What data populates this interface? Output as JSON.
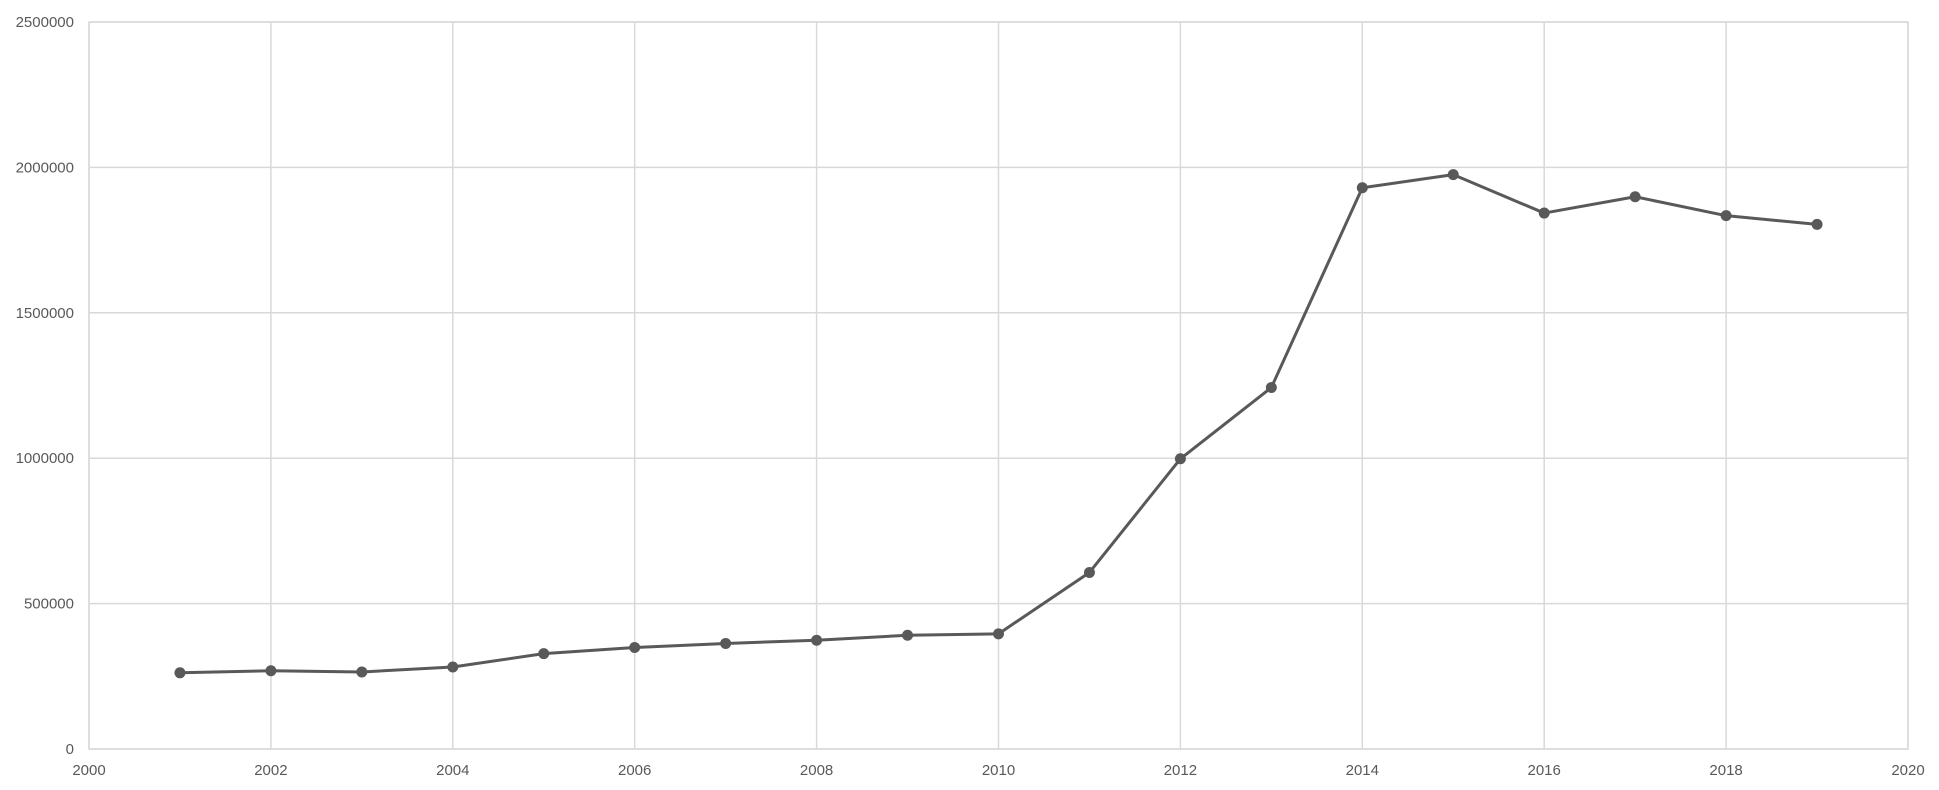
{
  "chart_data": {
    "type": "scatter",
    "title": "",
    "xlabel": "",
    "ylabel": "",
    "xlim": [
      2000,
      2020
    ],
    "ylim": [
      0,
      2500000
    ],
    "x_ticks": [
      "2000",
      "2002",
      "2004",
      "2006",
      "2008",
      "2010",
      "2012",
      "2014",
      "2016",
      "2018",
      "2020"
    ],
    "y_ticks": [
      "0",
      "500000",
      "1000000",
      "1500000",
      "2000000",
      "2500000"
    ],
    "grid": true,
    "legend": "none",
    "series": [
      {
        "x": [
          2001,
          2002,
          2003,
          2004,
          2005,
          2006,
          2007,
          2008,
          2009,
          2010,
          2011,
          2012,
          2013,
          2014,
          2015,
          2016,
          2017,
          2018,
          2019
        ],
        "y": [
          262000,
          269000,
          265000,
          282000,
          328000,
          349000,
          363000,
          374000,
          391000,
          396000,
          607000,
          998000,
          1243000,
          1930000,
          1975000,
          1843000,
          1899000,
          1834000,
          1804000
        ],
        "color": "#595959"
      }
    ]
  }
}
